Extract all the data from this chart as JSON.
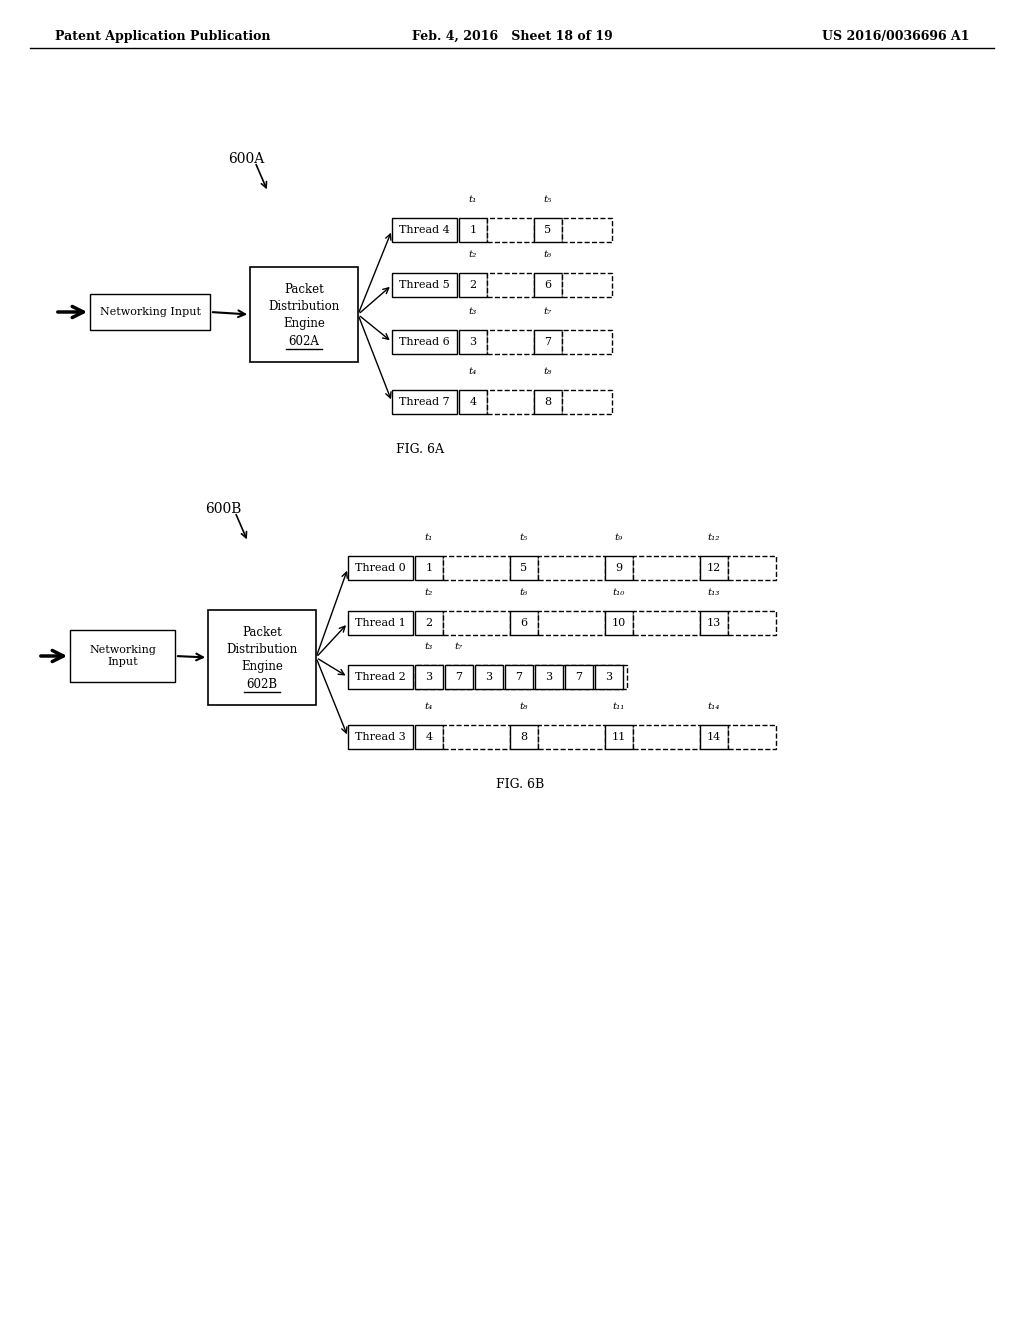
{
  "background_color": "#ffffff",
  "header_left": "Patent Application Publication",
  "header_mid": "Feb. 4, 2016   Sheet 18 of 19",
  "header_right": "US 2016/0036696 A1",
  "fig6a": {
    "label": "600A",
    "fig_label": "FIG. 6A",
    "input_text": "Networking Input",
    "engine_top_text": "Packet\nDistribution\nEngine",
    "engine_id": "602A",
    "threads": [
      "Thread 4",
      "Thread 5",
      "Thread 6",
      "Thread 7"
    ],
    "thread_cells": [
      [
        "1",
        "5"
      ],
      [
        "2",
        "6"
      ],
      [
        "3",
        "7"
      ],
      [
        "4",
        "8"
      ]
    ],
    "time_labels_top": [
      [
        "t₁",
        "t₅"
      ],
      [
        "t₂",
        "t₆"
      ],
      [
        "t₃",
        "t₇"
      ],
      [
        "t₄",
        "t₈"
      ]
    ]
  },
  "fig6b": {
    "label": "600B",
    "fig_label": "FIG. 6B",
    "input_text": "Networking\nInput",
    "engine_top_text": "Packet\nDistribution\nEngine",
    "engine_id": "602B",
    "threads": [
      "Thread 0",
      "Thread 1",
      "Thread 2",
      "Thread 3"
    ],
    "thread_cells": [
      [
        "1",
        "5",
        "9",
        "12"
      ],
      [
        "2",
        "6",
        "10",
        "13"
      ],
      [
        "3",
        "7",
        "3",
        "7",
        "3",
        "7",
        "3"
      ],
      [
        "4",
        "8",
        "11",
        "14"
      ]
    ],
    "time_labels_top": [
      [
        "t₁",
        "t₅",
        "t₉",
        "t₁₂"
      ],
      [
        "t₂",
        "t₆",
        "t₁₀",
        "t₁₃"
      ],
      [
        "t₃",
        "t₇"
      ],
      [
        "t₄",
        "t₈",
        "t₁₁",
        "t₁₄"
      ]
    ]
  }
}
